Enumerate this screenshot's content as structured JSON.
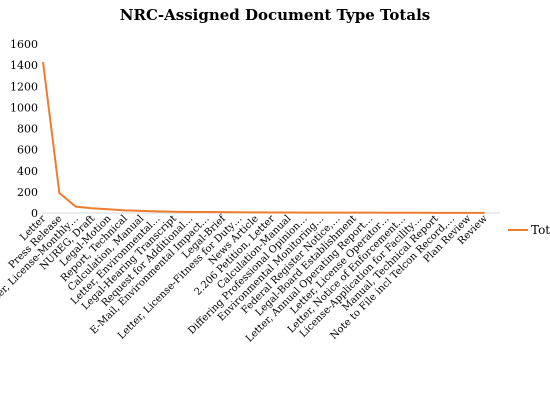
{
  "chart_data": {
    "type": "line",
    "title": "NRC-Assigned Document Type Totals",
    "ylim": [
      0,
      1600
    ],
    "y_ticks": [
      0,
      200,
      400,
      600,
      800,
      1000,
      1200,
      1400,
      1600
    ],
    "grid": false,
    "legend_position": "right",
    "categories": [
      "Letter",
      "Press Release",
      "Letter, License-Monthly…",
      "NUREG, Draft",
      "Legal-Motion",
      "Report, Technical",
      "Calculation, Manual",
      "Letter, Environmental…",
      "Legal-Hearing Transcript",
      "Request for Additional…",
      "E-Mail, Environmental Impact…",
      "Legal-Brief",
      "Letter, License-Fitness for Duty…",
      "News Article",
      "2.206 Petition, Letter",
      "Calculation-Manual",
      "Differing Professional Opinion…",
      "Environmental Monitoring…",
      "Federal Register Notice,…",
      "Legal-Board Establishment",
      "Letter, Annual Operating Report…",
      "Letter, License Operator…",
      "Letter, Notice of Enforcement…",
      "License-Application for Facility…",
      "Manual, Technical Report",
      "Note to File incl Telcon Record,…",
      "Plan Review",
      "Review"
    ],
    "series": [
      {
        "name": "Total",
        "color": "#ED7D31",
        "values": [
          1430,
          190,
          60,
          45,
          35,
          25,
          20,
          15,
          12,
          10,
          9,
          8,
          7,
          6,
          5,
          5,
          4,
          4,
          3,
          3,
          3,
          2,
          2,
          2,
          1,
          1,
          1,
          1
        ]
      }
    ]
  }
}
